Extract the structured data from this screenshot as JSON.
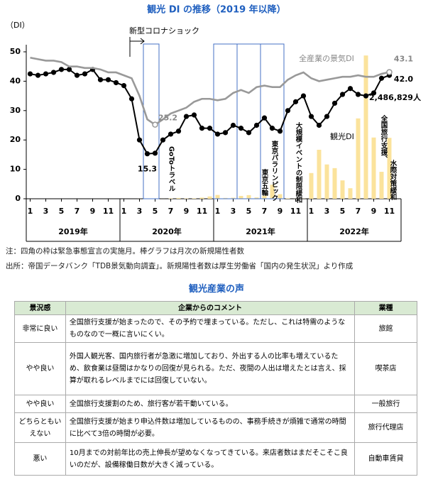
{
  "chart_data": {
    "type": "line",
    "title": "観光 DI の推移（2019 年以降）",
    "y_label": "（DI）",
    "x": [
      "2019-01",
      "2019-02",
      "2019-03",
      "2019-04",
      "2019-05",
      "2019-06",
      "2019-07",
      "2019-08",
      "2019-09",
      "2019-10",
      "2019-11",
      "2019-12",
      "2020-01",
      "2020-02",
      "2020-03",
      "2020-04",
      "2020-05",
      "2020-06",
      "2020-07",
      "2020-08",
      "2020-09",
      "2020-10",
      "2020-11",
      "2020-12",
      "2021-01",
      "2021-02",
      "2021-03",
      "2021-04",
      "2021-05",
      "2021-06",
      "2021-07",
      "2021-08",
      "2021-09",
      "2021-10",
      "2021-11",
      "2021-12",
      "2022-01",
      "2022-02",
      "2022-03",
      "2022-04",
      "2022-05",
      "2022-06",
      "2022-07",
      "2022-08",
      "2022-09",
      "2022-10",
      "2022-11"
    ],
    "xticks": [
      {
        "value": "2019-01",
        "label": "1"
      },
      {
        "value": "2019-03",
        "label": "3"
      },
      {
        "value": "2019-05",
        "label": "5"
      },
      {
        "value": "2019-07",
        "label": "7"
      },
      {
        "value": "2019-09",
        "label": "9"
      },
      {
        "value": "2019-11",
        "label": "11"
      },
      {
        "value": "2020-01",
        "label": "1"
      },
      {
        "value": "2020-03",
        "label": "3"
      },
      {
        "value": "2020-05",
        "label": "5"
      },
      {
        "value": "2020-07",
        "label": "7"
      },
      {
        "value": "2020-09",
        "label": "9"
      },
      {
        "value": "2020-11",
        "label": "11"
      },
      {
        "value": "2021-01",
        "label": "1"
      },
      {
        "value": "2021-03",
        "label": "3"
      },
      {
        "value": "2021-05",
        "label": "5"
      },
      {
        "value": "2021-07",
        "label": "7"
      },
      {
        "value": "2021-09",
        "label": "9"
      },
      {
        "value": "2021-11",
        "label": "11"
      },
      {
        "value": "2022-01",
        "label": "1"
      },
      {
        "value": "2022-03",
        "label": "3"
      },
      {
        "value": "2022-05",
        "label": "5"
      },
      {
        "value": "2022-07",
        "label": "7"
      },
      {
        "value": "2022-09",
        "label": "9"
      },
      {
        "value": "2022-11",
        "label": "11"
      }
    ],
    "year_labels": [
      "2019年",
      "2020年",
      "2021年",
      "2022年"
    ],
    "ylim": [
      0,
      50
    ],
    "yticks": [
      0,
      10,
      20,
      30,
      40,
      50
    ],
    "y2lim": [
      0,
      6000000
    ],
    "series": [
      {
        "name": "観光DI",
        "color": "#000000",
        "marker": "circle",
        "values": [
          42.5,
          42,
          42.5,
          43,
          44,
          44,
          42,
          42.5,
          44,
          40.5,
          40.5,
          39.5,
          38.5,
          34,
          20,
          15.3,
          15.5,
          20,
          22,
          23,
          28,
          28.5,
          24,
          24,
          22,
          22.5,
          25,
          24,
          22.5,
          25,
          27.5,
          24,
          23,
          30,
          33,
          35,
          28,
          25,
          28,
          32.5,
          35.5,
          37.5,
          35.5,
          35,
          36,
          41,
          42.0
        ],
        "value_labels": [
          null,
          null,
          null,
          null,
          null,
          null,
          null,
          null,
          null,
          null,
          null,
          null,
          null,
          null,
          null,
          "15.3",
          null,
          null,
          null,
          null,
          null,
          null,
          null,
          null,
          null,
          null,
          null,
          null,
          null,
          null,
          null,
          null,
          null,
          null,
          null,
          null,
          null,
          null,
          null,
          null,
          null,
          null,
          null,
          null,
          null,
          null,
          "42.0"
        ]
      },
      {
        "name": "全産業の景気DI",
        "color": "#999999",
        "values": [
          48,
          47.5,
          47,
          47,
          46.5,
          45,
          45,
          44.5,
          44.5,
          44,
          43,
          43,
          42,
          41,
          35,
          27,
          25.2,
          27,
          29,
          30,
          31,
          33,
          34,
          34,
          33.5,
          34,
          36,
          37,
          36,
          38,
          38.5,
          38,
          38,
          40.5,
          42,
          43,
          41,
          40,
          40.5,
          41,
          41.5,
          41.5,
          42,
          41.5,
          41.5,
          42.5,
          43.1
        ],
        "value_labels": [
          null,
          null,
          null,
          null,
          null,
          null,
          null,
          null,
          null,
          null,
          null,
          null,
          null,
          null,
          null,
          null,
          "25.2",
          null,
          null,
          null,
          null,
          null,
          null,
          null,
          null,
          null,
          null,
          null,
          null,
          null,
          null,
          null,
          null,
          null,
          null,
          null,
          null,
          null,
          null,
          null,
          null,
          null,
          null,
          null,
          null,
          null,
          "43.1"
        ]
      },
      {
        "type": "bar",
        "axis": "y2",
        "color": "#fbe39c",
        "values": [
          null,
          null,
          null,
          null,
          null,
          null,
          null,
          null,
          null,
          null,
          null,
          null,
          14,
          230,
          1900,
          12000,
          2500,
          1700,
          16900,
          32000,
          15000,
          18000,
          47000,
          95000,
          155000,
          33000,
          42000,
          116000,
          148000,
          52000,
          125000,
          575000,
          186000,
          17000,
          4000,
          5800,
          1050000,
          2000000,
          1400000,
          1250000,
          750000,
          430000,
          3280000,
          5850000,
          2500000,
          1100000,
          2486829
        ],
        "value_labels": [
          null,
          null,
          null,
          null,
          null,
          null,
          null,
          null,
          null,
          null,
          null,
          null,
          null,
          null,
          null,
          null,
          null,
          null,
          null,
          null,
          null,
          null,
          null,
          null,
          null,
          null,
          null,
          null,
          null,
          null,
          null,
          null,
          null,
          null,
          null,
          null,
          null,
          null,
          null,
          null,
          null,
          null,
          null,
          null,
          null,
          null,
          "2,486,829人"
        ]
      }
    ],
    "emergency_periods": [
      [
        "2020-04",
        "2020-05"
      ],
      [
        "2021-01",
        "2021-03"
      ],
      [
        "2021-04",
        "2021-06"
      ],
      [
        "2021-07",
        "2021-09"
      ]
    ],
    "annotations": [
      "新型コロナショック",
      "GoToトラベル",
      "東京五輪",
      "東京パラリンピック",
      "大規模イベントの制限緩和",
      "全国旅行支援、",
      "水際対策緩和"
    ],
    "notes": [
      "注：四角の枠は緊急事態宣言の実施月。棒グラフは月次の新規陽性者数",
      "出所：帝国データバンク「TDB景気動向調査」。新規陽性者数は厚生労働省「国内の発生状況」より作成"
    ]
  },
  "section_title": "観光産業の声",
  "table": {
    "header": [
      "景況感",
      "企業からのコメント",
      "業種"
    ],
    "rows": [
      [
        "非常に良い",
        "全国旅行支援が始まったので、その予約で埋まっている。ただし、これは特需のようなものなので一概に言いにくい。",
        "旅館"
      ],
      [
        "やや良い",
        "外国人観光客、国内旅行者が急激に増加しており、外出する人の比率も増えているため、飲食業は昼間はかなりの回復が見られる。ただ、夜間の人出は増えたとは言え、採算が取れるレベルまでには回復していない。",
        "喫茶店"
      ],
      [
        "やや良い",
        "全国旅行支援割のため、旅行客が若干動いている。",
        "一般旅行"
      ],
      [
        "どちらともいえない",
        "全国旅行支援が始まり申込件数は増加しているものの、事務手続きが煩雑で通常の時間に比べて3倍の時間が必要。",
        "旅行代理店"
      ],
      [
        "悪い",
        "10月までの対前年比の売上伸長が望めなくなってきている。来店者数はまだそこそこ良いのだが、設備稼働日数が大きく減っている。",
        "自動車賃貸"
      ]
    ]
  }
}
